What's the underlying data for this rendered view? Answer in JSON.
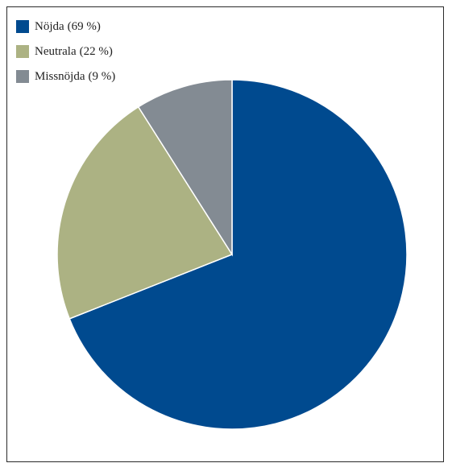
{
  "chart_data": {
    "type": "pie",
    "title": "",
    "legend_position": "top-left",
    "slices": [
      {
        "label": "Nöjda",
        "value": 69,
        "display": "(69 %)",
        "color": "#004a8f"
      },
      {
        "label": "Neutrala",
        "value": 22,
        "display": "(22 %)",
        "color": "#acb283"
      },
      {
        "label": "Missnöjda",
        "value": 9,
        "display": "(9 %)",
        "color": "#838b93"
      }
    ],
    "start_angle_deg": 0,
    "direction": "clockwise"
  }
}
